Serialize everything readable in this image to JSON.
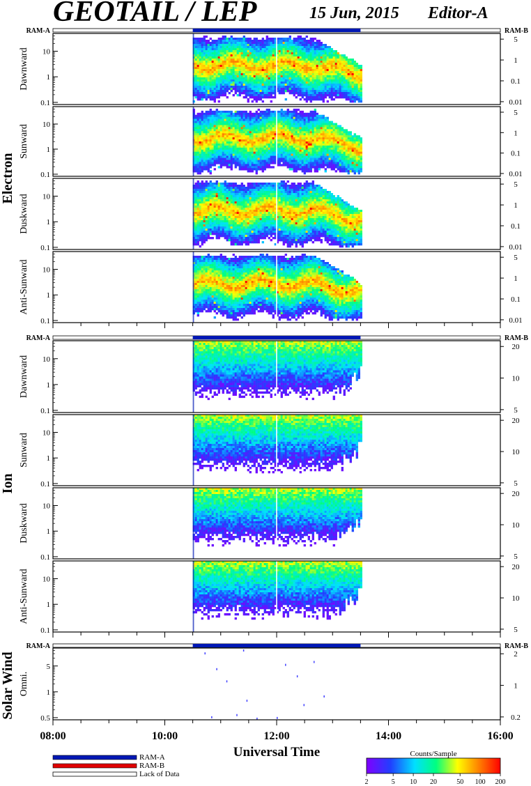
{
  "header": {
    "title": "GEOTAIL / LEP",
    "date": "15 Jun, 2015",
    "editor": "Editor-A"
  },
  "colors": {
    "ram_a": "#0018b4",
    "ram_b": "#e00000",
    "spectrogram_scale": [
      "#8000ff",
      "#2040ff",
      "#00e0ff",
      "#00ff80",
      "#ffff00",
      "#ff8000",
      "#ff0000"
    ]
  },
  "groups": [
    {
      "name": "Electron",
      "panels": [
        "Dawnward",
        "Sunward",
        "Duskward",
        "Anti-Sunward"
      ]
    },
    {
      "name": "Ion",
      "panels": [
        "Dawnward",
        "Sunward",
        "Duskward",
        "Anti-Sunward"
      ]
    },
    {
      "name": "Solar Wind",
      "panels": [
        "Omni."
      ]
    }
  ],
  "axes": {
    "electron_left_ticks": [
      "10",
      "1",
      "0.1"
    ],
    "electron_right_ticks": [
      "5",
      "1",
      "0.1",
      "0.01"
    ],
    "ion_left_ticks": [
      "10",
      "1",
      "0.1"
    ],
    "ion_right_ticks": [
      "20",
      "10",
      "5"
    ],
    "sw_left_ticks": [
      "5",
      "1",
      "0.5"
    ],
    "sw_right_ticks": [
      "2",
      "1",
      "0.2"
    ],
    "x_ticks": [
      "08:00",
      "10:00",
      "12:00",
      "14:00",
      "16:00"
    ],
    "x_label": "Universal Time"
  },
  "ram": {
    "a_label": "RAM-A",
    "b_label": "RAM-B"
  },
  "legend": {
    "ram_a": "RAM-A",
    "ram_b": "RAM-B",
    "lack": "Lack of Data"
  },
  "colorbar": {
    "title": "Counts/Sample",
    "ticks": [
      "2",
      "5",
      "10",
      "20",
      "50",
      "100",
      "200"
    ]
  },
  "chart_data": {
    "type": "heatmap",
    "title": "GEOTAIL / LEP",
    "xlabel": "Universal Time",
    "xlim": [
      "08:00",
      "16:00"
    ],
    "x_ticks": [
      "08:00",
      "10:00",
      "12:00",
      "14:00",
      "16:00"
    ],
    "data_coverage": {
      "start": "10:30",
      "end": "13:30"
    },
    "ram_a_intervals": [
      [
        "10:30",
        "13:30"
      ]
    ],
    "colorbar": {
      "label": "Counts/Sample",
      "ticks": [
        2,
        5,
        10,
        20,
        50,
        100,
        200
      ],
      "scale": "log"
    },
    "electron_left_axis": {
      "scale": "log",
      "ticks": [
        10,
        1,
        0.1
      ]
    },
    "electron_right_axis": {
      "scale": "log",
      "ticks": [
        5,
        1,
        0.1,
        0.01
      ]
    },
    "ion_left_axis": {
      "scale": "log",
      "ticks": [
        10,
        1,
        0.1
      ]
    },
    "ion_right_axis": {
      "ticks": [
        20,
        10,
        5
      ]
    },
    "sw_left_axis": {
      "scale": "log",
      "ticks": [
        5,
        1,
        0.5
      ]
    },
    "sw_right_axis": {
      "ticks": [
        2,
        1,
        0.2
      ]
    }
  }
}
